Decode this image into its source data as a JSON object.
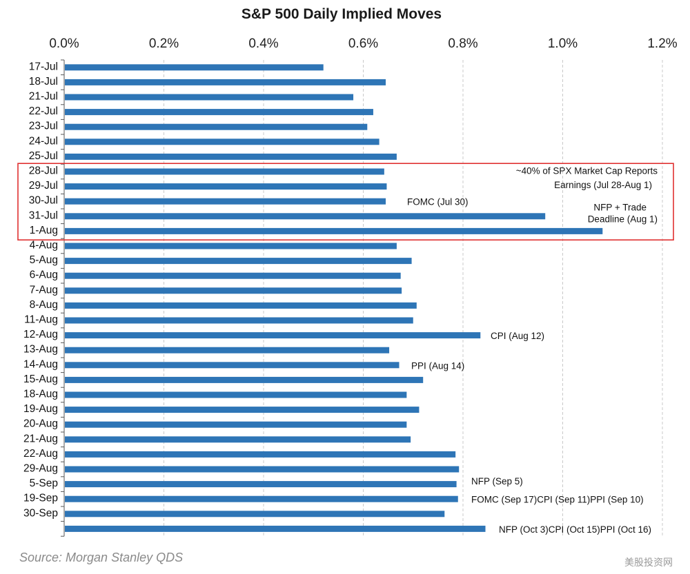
{
  "chart_data": {
    "type": "bar",
    "orientation": "horizontal",
    "title": "S&P 500 Daily Implied Moves",
    "xlim": [
      0,
      1.2
    ],
    "tick_values": [
      0,
      0.2,
      0.4,
      0.6,
      0.8,
      1.0,
      1.2
    ],
    "tick_labels": [
      "0.0%",
      "0.2%",
      "0.4%",
      "0.6%",
      "0.8%",
      "1.0%",
      "1.2%"
    ],
    "grid": "vertical dashed",
    "bar_color": "#2e75b6",
    "highlight_color": "#e03030",
    "categories": [
      "17-Jul",
      "18-Jul",
      "21-Jul",
      "22-Jul",
      "23-Jul",
      "24-Jul",
      "25-Jul",
      "28-Jul",
      "29-Jul",
      "30-Jul",
      "31-Jul",
      "1-Aug",
      "4-Aug",
      "5-Aug",
      "6-Aug",
      "7-Aug",
      "8-Aug",
      "11-Aug",
      "12-Aug",
      "13-Aug",
      "14-Aug",
      "15-Aug",
      "18-Aug",
      "19-Aug",
      "20-Aug",
      "21-Aug",
      "22-Aug",
      "29-Aug",
      "5-Sep",
      "19-Sep",
      "30-Sep",
      ""
    ],
    "values": [
      0.52,
      0.645,
      0.58,
      0.62,
      0.608,
      0.632,
      0.667,
      0.642,
      0.647,
      0.645,
      0.965,
      1.08,
      0.667,
      0.697,
      0.675,
      0.677,
      0.707,
      0.7,
      0.835,
      0.652,
      0.672,
      0.72,
      0.687,
      0.712,
      0.687,
      0.695,
      0.785,
      0.792,
      0.787,
      0.79,
      0.763,
      0.845
    ],
    "highlight_range": [
      "28-Jul",
      "1-Aug"
    ],
    "annotations": [
      {
        "text": "~40% of SPX Market Cap Reports",
        "category": "28-Jul"
      },
      {
        "text": "Earnings (Jul 28-Aug 1)",
        "category": "29-Jul"
      },
      {
        "text": "FOMC (Jul 30)",
        "category": "30-Jul"
      },
      {
        "text": "NFP + Trade",
        "category": "31-Jul"
      },
      {
        "text": "Deadline  (Aug 1)",
        "category": "31-Jul"
      },
      {
        "text": "CPI (Aug 12)",
        "category": "12-Aug"
      },
      {
        "text": "PPI (Aug 14)",
        "category": "14-Aug"
      },
      {
        "text": "NFP (Sep 5)",
        "category": "5-Sep"
      },
      {
        "text": "FOMC (Sep 17)CPI (Sep 11)PPI (Sep 10)",
        "category": "19-Sep"
      },
      {
        "text": "NFP (Oct 3)CPI (Oct 15)PPI (Oct 16)",
        "category": ""
      }
    ],
    "source": "Source: Morgan Stanley QDS"
  },
  "watermark": "美股投资网"
}
